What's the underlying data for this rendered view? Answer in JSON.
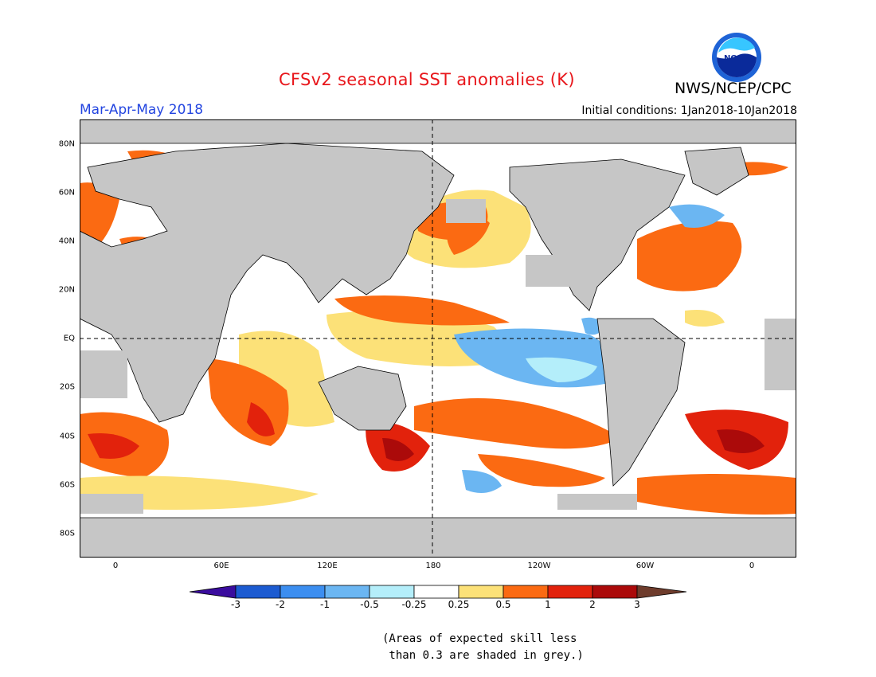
{
  "header": {
    "title": "CFSv2 seasonal SST anomalies (K)",
    "agency": "NWS/NCEP/CPC",
    "season": "Mar-Apr-May 2018",
    "initial_conditions": "Initial conditions: 1Jan2018-10Jan2018",
    "logo_text": "NOAA"
  },
  "map": {
    "lat_labels": [
      "80N",
      "60N",
      "40N",
      "20N",
      "EQ",
      "20S",
      "40S",
      "60S",
      "80S"
    ],
    "lon_labels": [
      "0",
      "60E",
      "120E",
      "180",
      "120W",
      "60W",
      "0"
    ]
  },
  "colorbar": {
    "tick_labels": [
      "-3",
      "-2",
      "-1",
      "-0.5",
      "-0.25",
      "0.25",
      "0.5",
      "1",
      "2",
      "3"
    ],
    "colors": [
      "#3a0c9e",
      "#1c5bd1",
      "#3c8ef0",
      "#6bb6f2",
      "#b4eefa",
      "#ffffff",
      "#fce178",
      "#fb6a12",
      "#e2220c",
      "#ab0a0a",
      "#6e3c2c"
    ]
  },
  "note": {
    "line1": "(Areas of expected skill less",
    "line2": " than 0.3 are shaded in grey.)"
  },
  "colors": {
    "title": "#e8161b",
    "season": "#2345e0",
    "land_grey": "#c6c6c6"
  }
}
